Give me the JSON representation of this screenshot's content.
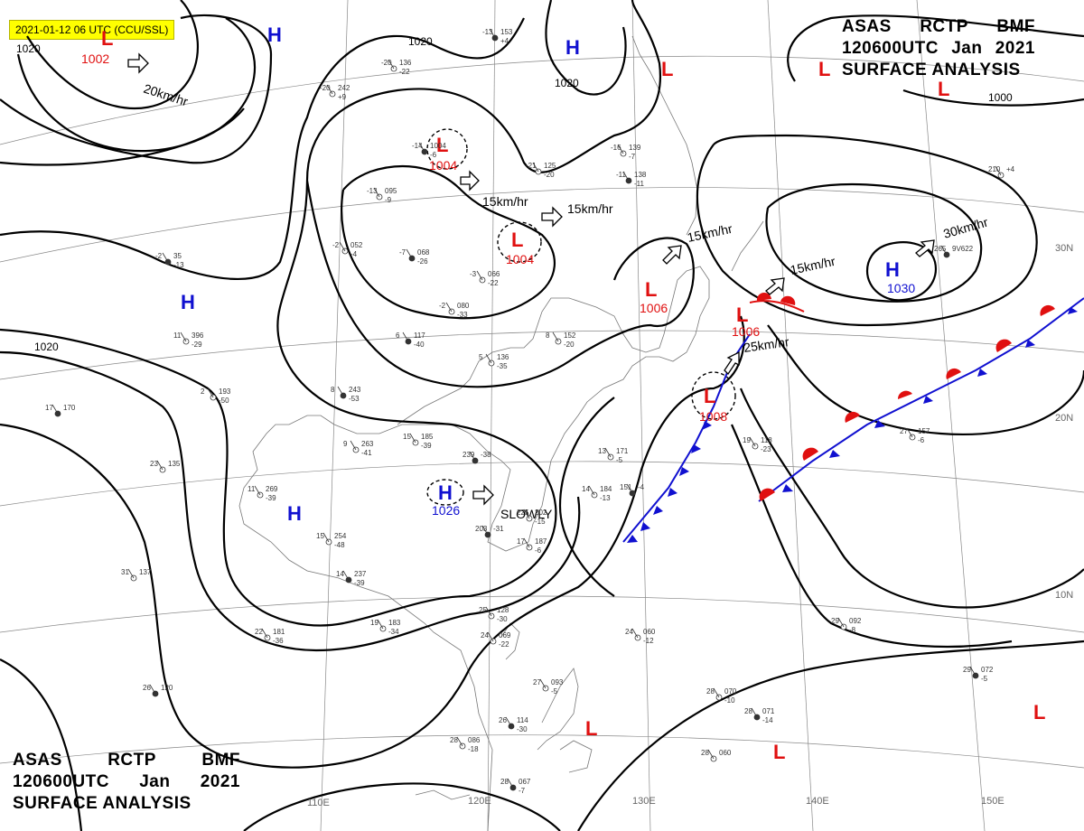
{
  "stamp": "2021-01-12 06 UTC (CCU/SSL)",
  "title": {
    "line1": [
      "ASAS",
      "RCTP",
      "BMF"
    ],
    "line2": [
      "120600UTC",
      "Jan",
      "2021"
    ],
    "line3": "SURFACE ANALYSIS"
  },
  "grid_labels": {
    "lat": [
      "30N",
      "20N",
      "10N"
    ],
    "lon": [
      "110E",
      "120E",
      "130E",
      "140E",
      "150E"
    ]
  },
  "isobar_labels": [
    "1020",
    "1020",
    "1020",
    "1020",
    "1000"
  ],
  "colors": {
    "high": "#1010d0",
    "low": "#e01010",
    "front_cold": "#1010d0",
    "front_warm": "#e01010",
    "stamp_bg": "#ffff00"
  },
  "pressure_centers": [
    {
      "type": "H",
      "value": ""
    },
    {
      "type": "H",
      "value": ""
    },
    {
      "type": "H",
      "value": ""
    },
    {
      "type": "H",
      "value": ""
    },
    {
      "type": "H",
      "value": "1026"
    },
    {
      "type": "H",
      "value": "1030"
    },
    {
      "type": "L",
      "value": "1002"
    },
    {
      "type": "L",
      "value": "1004"
    },
    {
      "type": "L",
      "value": "1004"
    },
    {
      "type": "L",
      "value": "1006"
    },
    {
      "type": "L",
      "value": "1006"
    },
    {
      "type": "L",
      "value": "1008"
    },
    {
      "type": "L",
      "value": ""
    },
    {
      "type": "L",
      "value": ""
    },
    {
      "type": "L",
      "value": ""
    },
    {
      "type": "L",
      "value": ""
    },
    {
      "type": "L",
      "value": ""
    },
    {
      "type": "L",
      "value": ""
    },
    {
      "type": "L",
      "value": ""
    }
  ],
  "motion_labels": [
    "20km/hr",
    "15km/hr",
    "15km/hr",
    "15km/hr",
    "15km/hr",
    "30km/hr",
    "25km/hr",
    "SLOWLY"
  ],
  "station_plots": [
    {
      "a": "-13",
      "b": "153",
      "c": "+4"
    },
    {
      "a": "-20",
      "b": "136",
      "c": "-22"
    },
    {
      "a": "-20",
      "b": "242",
      "c": "+9"
    },
    {
      "a": "-14",
      "b": "1004",
      "c": "-6"
    },
    {
      "a": "-21",
      "b": "125",
      "c": "-20"
    },
    {
      "a": "-16",
      "b": "139",
      "c": "-7"
    },
    {
      "a": "-11",
      "b": "138",
      "c": "-11"
    },
    {
      "a": "-13",
      "b": "095",
      "c": "-9"
    },
    {
      "a": "-2",
      "b": "052",
      "c": "-4"
    },
    {
      "a": "-7",
      "b": "068",
      "c": "-26"
    },
    {
      "a": "-3",
      "b": "066",
      "c": "-22"
    },
    {
      "a": "-2",
      "b": "080",
      "c": "-33"
    },
    {
      "a": "6",
      "b": "117",
      "c": "-40"
    },
    {
      "a": "5",
      "b": "136",
      "c": "-35"
    },
    {
      "a": "8",
      "b": "152",
      "c": "-20"
    },
    {
      "a": "-2",
      "b": "35",
      "c": "-13"
    },
    {
      "a": "11",
      "b": "396",
      "c": "-29"
    },
    {
      "a": "2",
      "b": "193",
      "c": "-50"
    },
    {
      "a": "8",
      "b": "243",
      "c": "-53"
    },
    {
      "a": "15",
      "b": "185",
      "c": "-39"
    },
    {
      "a": "9",
      "b": "263",
      "c": "-41"
    },
    {
      "a": "239",
      "b": "-38",
      "c": ""
    },
    {
      "a": "11",
      "b": "269",
      "c": "-39"
    },
    {
      "a": "15",
      "b": "254",
      "c": "-48"
    },
    {
      "a": "14",
      "b": "237",
      "c": "-39"
    },
    {
      "a": "19",
      "b": "183",
      "c": "-34"
    },
    {
      "a": "22",
      "b": "181",
      "c": "-36"
    },
    {
      "a": "17",
      "b": "170",
      "c": ""
    },
    {
      "a": "31",
      "b": "137",
      "c": ""
    },
    {
      "a": "23",
      "b": "135",
      "c": ""
    },
    {
      "a": "26",
      "b": "120",
      "c": ""
    },
    {
      "a": "25",
      "b": "128",
      "c": "-30"
    },
    {
      "a": "24",
      "b": "069",
      "c": "-22"
    },
    {
      "a": "26",
      "b": "114",
      "c": "-30"
    },
    {
      "a": "28",
      "b": "086",
      "c": "-18"
    },
    {
      "a": "27",
      "b": "093",
      "c": "-5"
    },
    {
      "a": "28",
      "b": "067",
      "c": "-7"
    },
    {
      "a": "24",
      "b": "060",
      "c": "-12"
    },
    {
      "a": "28",
      "b": "070",
      "c": "-10"
    },
    {
      "a": "28",
      "b": "071",
      "c": "-14"
    },
    {
      "a": "28",
      "b": "060",
      "c": ""
    },
    {
      "a": "29",
      "b": "092",
      "c": "-8"
    },
    {
      "a": "29",
      "b": "072",
      "c": "-5"
    },
    {
      "a": "14",
      "b": "184",
      "c": "-13"
    },
    {
      "a": "17",
      "b": "187",
      "c": "-6"
    },
    {
      "a": "203",
      "b": "-31",
      "c": ""
    },
    {
      "a": "225",
      "b": "202",
      "c": "-15"
    },
    {
      "a": "13",
      "b": "171",
      "c": "-5"
    },
    {
      "a": "151",
      "b": "-4",
      "c": ""
    },
    {
      "a": "19",
      "b": "118",
      "c": "-23"
    },
    {
      "a": "27",
      "b": "157",
      "c": "-6"
    },
    {
      "a": "265",
      "b": "9V622",
      "c": ""
    },
    {
      "a": "210",
      "b": "+4",
      "c": ""
    }
  ]
}
